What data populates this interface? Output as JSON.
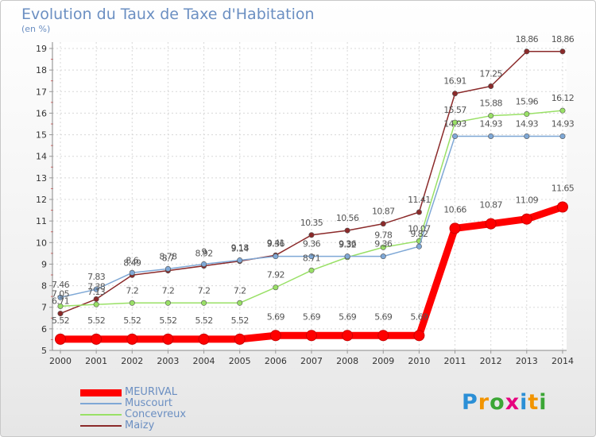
{
  "header": {
    "title": "Evolution du Taux de Taxe d'Habitation",
    "unit": "(en %)"
  },
  "logo": {
    "text": "Proxiti",
    "colors": [
      "#2b8fd6",
      "#f29400",
      "#3ba635",
      "#e6007e",
      "#2b8fd6",
      "#f29400",
      "#3ba635"
    ]
  },
  "chart_data": {
    "type": "line",
    "x": [
      "2000",
      "2001",
      "2002",
      "2003",
      "2004",
      "2005",
      "2006",
      "2007",
      "2008",
      "2009",
      "2010",
      "2011",
      "2012",
      "2013",
      "2014"
    ],
    "ylim": [
      5,
      19
    ],
    "yticks": [
      5,
      6,
      7,
      8,
      9,
      10,
      11,
      12,
      13,
      14,
      15,
      16,
      17,
      18,
      19
    ],
    "grid": true,
    "legend_position": "bottom-left",
    "series": [
      {
        "name": "MEURIVAL",
        "color": "#ff0000",
        "values": [
          5.52,
          5.52,
          5.52,
          5.52,
          5.52,
          5.52,
          5.69,
          5.69,
          5.69,
          5.69,
          5.69,
          10.66,
          10.87,
          11.09,
          11.65
        ],
        "labels": [
          "5.52",
          "5.52",
          "5.52",
          "5.52",
          "5.52",
          "5.52",
          "5.69",
          "5.69",
          "5.69",
          "5.69",
          "5.69",
          "10.66",
          "10.87",
          "11.09",
          "11.65"
        ]
      },
      {
        "name": "Muscourt",
        "color": "#7fa8d6",
        "values": [
          7.46,
          7.83,
          8.6,
          8.78,
          9.0,
          9.18,
          9.36,
          9.36,
          9.36,
          9.36,
          9.82,
          14.93,
          14.93,
          14.93,
          14.93
        ],
        "labels": [
          "7.46",
          "7.83",
          "8.6",
          "8.78",
          "9",
          "9.18",
          "9.36",
          "9.36",
          "9.36",
          "9.36",
          "9.82",
          "14.93",
          "14.93",
          "14.93",
          "14.93"
        ]
      },
      {
        "name": "Concevreux",
        "color": "#99e066",
        "values": [
          7.05,
          7.13,
          7.2,
          7.2,
          7.2,
          7.2,
          7.92,
          8.71,
          9.32,
          9.78,
          10.07,
          15.57,
          15.88,
          15.96,
          16.12
        ],
        "labels": [
          "7.05",
          "7.13",
          "7.2",
          "7.2",
          "7.2",
          "7.2",
          "7.92",
          "8.71",
          "9.32",
          "9.78",
          "10.07",
          "15.57",
          "15.88",
          "15.96",
          "16.12"
        ]
      },
      {
        "name": "Maizy",
        "color": "#8b2a2a",
        "values": [
          6.71,
          7.38,
          8.49,
          8.7,
          8.92,
          9.14,
          9.41,
          10.35,
          10.56,
          10.87,
          11.41,
          16.91,
          17.25,
          18.86,
          18.86
        ],
        "labels": [
          "6.71",
          "7.38",
          "8.49",
          "8.7",
          "8.92",
          "9.14",
          "9.41",
          "10.35",
          "10.56",
          "10.87",
          "11.41",
          "16.91",
          "17.25",
          "18.86",
          "18.86"
        ]
      }
    ]
  }
}
